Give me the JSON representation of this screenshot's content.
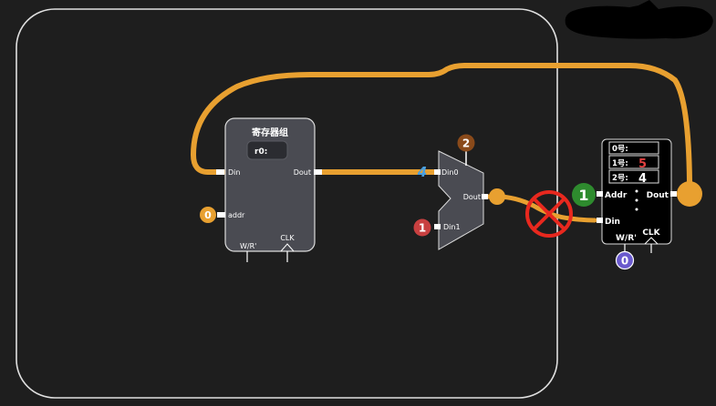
{
  "colors": {
    "background": "#1e1e1e",
    "frame": "#e0e0e0",
    "wire": "#e8a030",
    "block_fill": "#4a4b52",
    "port": "#ffffff",
    "badge_orange": "#e8a030",
    "badge_brown": "#8a4a1a",
    "badge_red": "#c84040",
    "badge_green": "#2e8b2e",
    "badge_purple": "#6a5acd",
    "cross": "#e8281e",
    "digit_blue": "#4aa0e0",
    "ram_value_red": "#e04040"
  },
  "register_file": {
    "title": "寄存器组",
    "reg_label": "r0:",
    "din": "Din",
    "dout": "Dout",
    "addr": "addr",
    "wr": "W/R'",
    "clk": "CLK"
  },
  "mux": {
    "din0": "Din0",
    "din1": "Din1",
    "dout": "Dout",
    "wire_digit": "4"
  },
  "ram": {
    "rows": [
      {
        "label": "0号:",
        "value": ""
      },
      {
        "label": "1号:",
        "value": "5"
      },
      {
        "label": "2号:",
        "value": "4"
      }
    ],
    "addr": "Addr",
    "dout": "Dout",
    "din": "Din",
    "wr": "W/R'",
    "clk": "CLK"
  },
  "badges": {
    "reg_addr": "0",
    "mux_select": "2",
    "mux_din1": "1",
    "ram_addr": "1",
    "ram_wr": "0"
  }
}
